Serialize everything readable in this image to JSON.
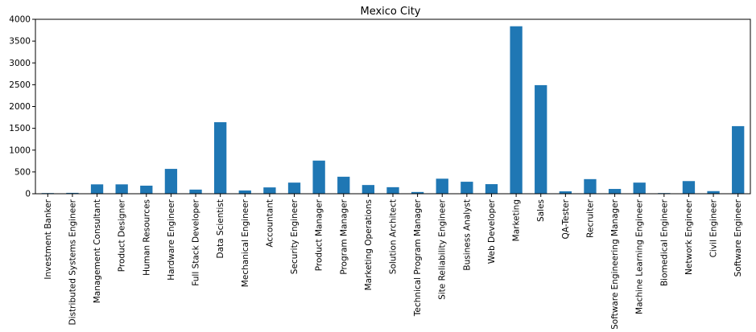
{
  "chart_data": {
    "type": "bar",
    "title": "Mexico City",
    "xlabel": "",
    "ylabel": "",
    "ylim": [
      0,
      4000
    ],
    "yticks": [
      0,
      500,
      1000,
      1500,
      2000,
      2500,
      3000,
      3500,
      4000
    ],
    "grid": false,
    "bar_color": "#1f77b4",
    "categories": [
      "Investment Banker",
      "Distributed Systems Engineer",
      "Management Consultant",
      "Product Designer",
      "Human Resources",
      "Hardware Engineer",
      "Full Stack Developer",
      "Data Scientist",
      "Mechanical Engineer",
      "Accountant",
      "Security Engineer",
      "Product Manager",
      "Program Manager",
      "Marketing Operations",
      "Solution Architect",
      "Technical Program Manager",
      "Site Reliability Engineer",
      "Business Analyst",
      "Web Developer",
      "Marketing",
      "Sales",
      "QA-Tester",
      "Recruiter",
      "Software Engineering Manager",
      "Machine Learning Engineer",
      "Biomedical Engineer",
      "Network Engineer",
      "Civil Engineer",
      "Software Engineer"
    ],
    "values": [
      15,
      20,
      215,
      215,
      185,
      570,
      95,
      1640,
      75,
      145,
      255,
      760,
      390,
      200,
      150,
      40,
      345,
      275,
      220,
      3840,
      2490,
      55,
      335,
      110,
      255,
      15,
      290,
      60,
      1550
    ]
  }
}
